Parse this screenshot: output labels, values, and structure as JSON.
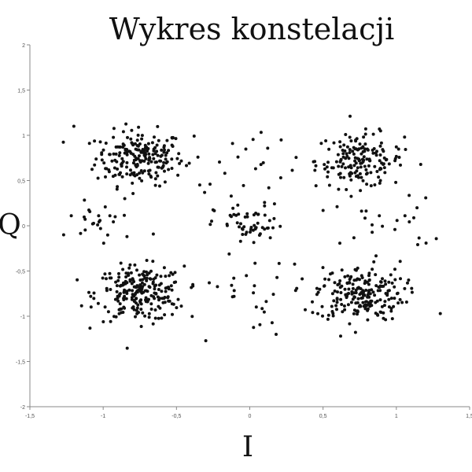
{
  "chart_data": {
    "type": "scatter",
    "title": "Wykres konstelacji",
    "xlabel": "I",
    "ylabel": "Q",
    "xlim": [
      -1.5,
      1.5
    ],
    "ylim": [
      -2,
      2
    ],
    "xticks": [
      "-1,5",
      "-1",
      "-0,5",
      "0",
      "0,5",
      "1",
      "1,5"
    ],
    "yticks": [
      "2",
      "1,5",
      "1",
      "0,5",
      "0",
      "-0,5",
      "-1",
      "-1,5",
      "-2"
    ],
    "grid": false,
    "legend": "none",
    "marker_color": "#111111",
    "clusters": [
      {
        "center": [
          -0.75,
          0.75
        ],
        "count": 210,
        "spread": 0.15
      },
      {
        "center": [
          0.75,
          0.72
        ],
        "count": 170,
        "spread": 0.15
      },
      {
        "center": [
          -0.75,
          -0.75
        ],
        "count": 240,
        "spread": 0.15
      },
      {
        "center": [
          0.75,
          -0.75
        ],
        "count": 210,
        "spread": 0.15
      },
      {
        "center": [
          0.0,
          0.0
        ],
        "count": 55,
        "spread": 0.12
      },
      {
        "center": [
          -1.0,
          0.05
        ],
        "count": 25,
        "spread": 0.15
      },
      {
        "center": [
          0.95,
          0.0
        ],
        "count": 22,
        "spread": 0.15
      },
      {
        "center": [
          0.0,
          0.75
        ],
        "count": 20,
        "spread": 0.2
      },
      {
        "center": [
          0.0,
          -0.75
        ],
        "count": 25,
        "spread": 0.2
      }
    ],
    "outliers": [
      [
        -1.27,
        -0.1
      ],
      [
        1.3,
        -0.97
      ],
      [
        -1.2,
        1.1
      ],
      [
        -0.3,
        -1.27
      ],
      [
        0.62,
        -1.22
      ],
      [
        0.18,
        -1.2
      ],
      [
        0.5,
        0.17
      ],
      [
        0.13,
        0.42
      ]
    ]
  }
}
